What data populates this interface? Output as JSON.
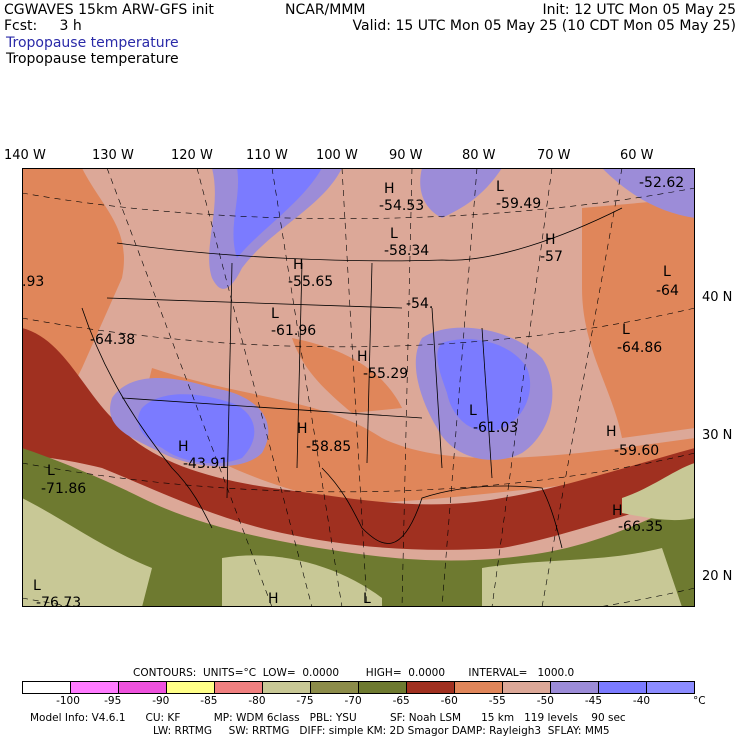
{
  "header": {
    "left_line1": "CGWAVES 15km ARW-GFS init",
    "left_line2": "Fcst:     3 h",
    "field_line1": "Tropopause temperature",
    "field_line2": "Tropopause temperature",
    "center_line1": "NCAR/MMM",
    "right_line1": "Init: 12 UTC Mon 05 May 25",
    "right_line2": "Valid: 15 UTC Mon 05 May 25 (10 CDT Mon 05 May 25)"
  },
  "axes": {
    "longitudes": [
      "140 W",
      "130 W",
      "120 W",
      "110 W",
      "100 W",
      "90 W",
      "80 W",
      "70 W",
      "60 W"
    ],
    "latitudes": [
      "40 N",
      "30 N",
      "20 N"
    ]
  },
  "map_labels": [
    {
      "id": "h1",
      "text": "H"
    },
    {
      "id": "v1",
      "text": "-54.53"
    },
    {
      "id": "l1",
      "text": "L"
    },
    {
      "id": "v2",
      "text": "-59.49"
    },
    {
      "id": "v3",
      "text": "-52.62"
    },
    {
      "id": "l2",
      "text": "L"
    },
    {
      "id": "v4",
      "text": "-58.34"
    },
    {
      "id": "h2",
      "text": "H"
    },
    {
      "id": "v5",
      "text": "-57"
    },
    {
      "id": "h3",
      "text": "H"
    },
    {
      "id": "v6",
      "text": "-55.65"
    },
    {
      "id": "v7",
      "text": ".93"
    },
    {
      "id": "l3",
      "text": "L"
    },
    {
      "id": "v8",
      "text": "-64"
    },
    {
      "id": "v9",
      "text": "-54."
    },
    {
      "id": "l4",
      "text": "L"
    },
    {
      "id": "v10",
      "text": "-61.96"
    },
    {
      "id": "v11",
      "text": "-64.38"
    },
    {
      "id": "l5",
      "text": "L"
    },
    {
      "id": "v12",
      "text": "-64.86"
    },
    {
      "id": "h4",
      "text": "H"
    },
    {
      "id": "v13",
      "text": "-55.29"
    },
    {
      "id": "h5",
      "text": "H"
    },
    {
      "id": "v14",
      "text": "-58.85"
    },
    {
      "id": "l6",
      "text": "L"
    },
    {
      "id": "v15",
      "text": "-61.03"
    },
    {
      "id": "h6",
      "text": "H"
    },
    {
      "id": "v16",
      "text": "-43.91"
    },
    {
      "id": "h7",
      "text": "H"
    },
    {
      "id": "v17",
      "text": "-59.60"
    },
    {
      "id": "l7",
      "text": "L"
    },
    {
      "id": "v18",
      "text": "-71.86"
    },
    {
      "id": "h8",
      "text": "H"
    },
    {
      "id": "v19",
      "text": "-66.35"
    },
    {
      "id": "l8",
      "text": "L"
    },
    {
      "id": "v20",
      "text": "-76.73"
    },
    {
      "id": "h9",
      "text": "H"
    },
    {
      "id": "l9",
      "text": "L"
    }
  ],
  "contours_line": "CONTOURS:  UNITS=°C  LOW=  0.0000        HIGH=  0.0000       INTERVAL=   1000.0",
  "legend": {
    "colors": [
      "#ffffff",
      "#ff7bff",
      "#ee52dd",
      "#ffff88",
      "#f08080",
      "#c8c896",
      "#8c8c4a",
      "#6e7a30",
      "#a03020",
      "#e0865a",
      "#dca898",
      "#9c8cd8",
      "#7b7bff",
      "#8c8cff"
    ],
    "ticks": [
      "-100",
      "-95",
      "-90",
      "-85",
      "-80",
      "-75",
      "-70",
      "-65",
      "-60",
      "-55",
      "-50",
      "-45",
      "-40",
      "°C"
    ]
  },
  "model_info": {
    "line1": "Model Info: V4.6.1      CU: KF          MP: WDM 6class   PBL: YSU          SF: Noah LSM      15 km   119 levels    90 sec",
    "line2": "LW: RRTMG     SW: RRTMG   DIFF: simple KM: 2D Smagor DAMP: Rayleigh3  SFLAY: MM5"
  }
}
